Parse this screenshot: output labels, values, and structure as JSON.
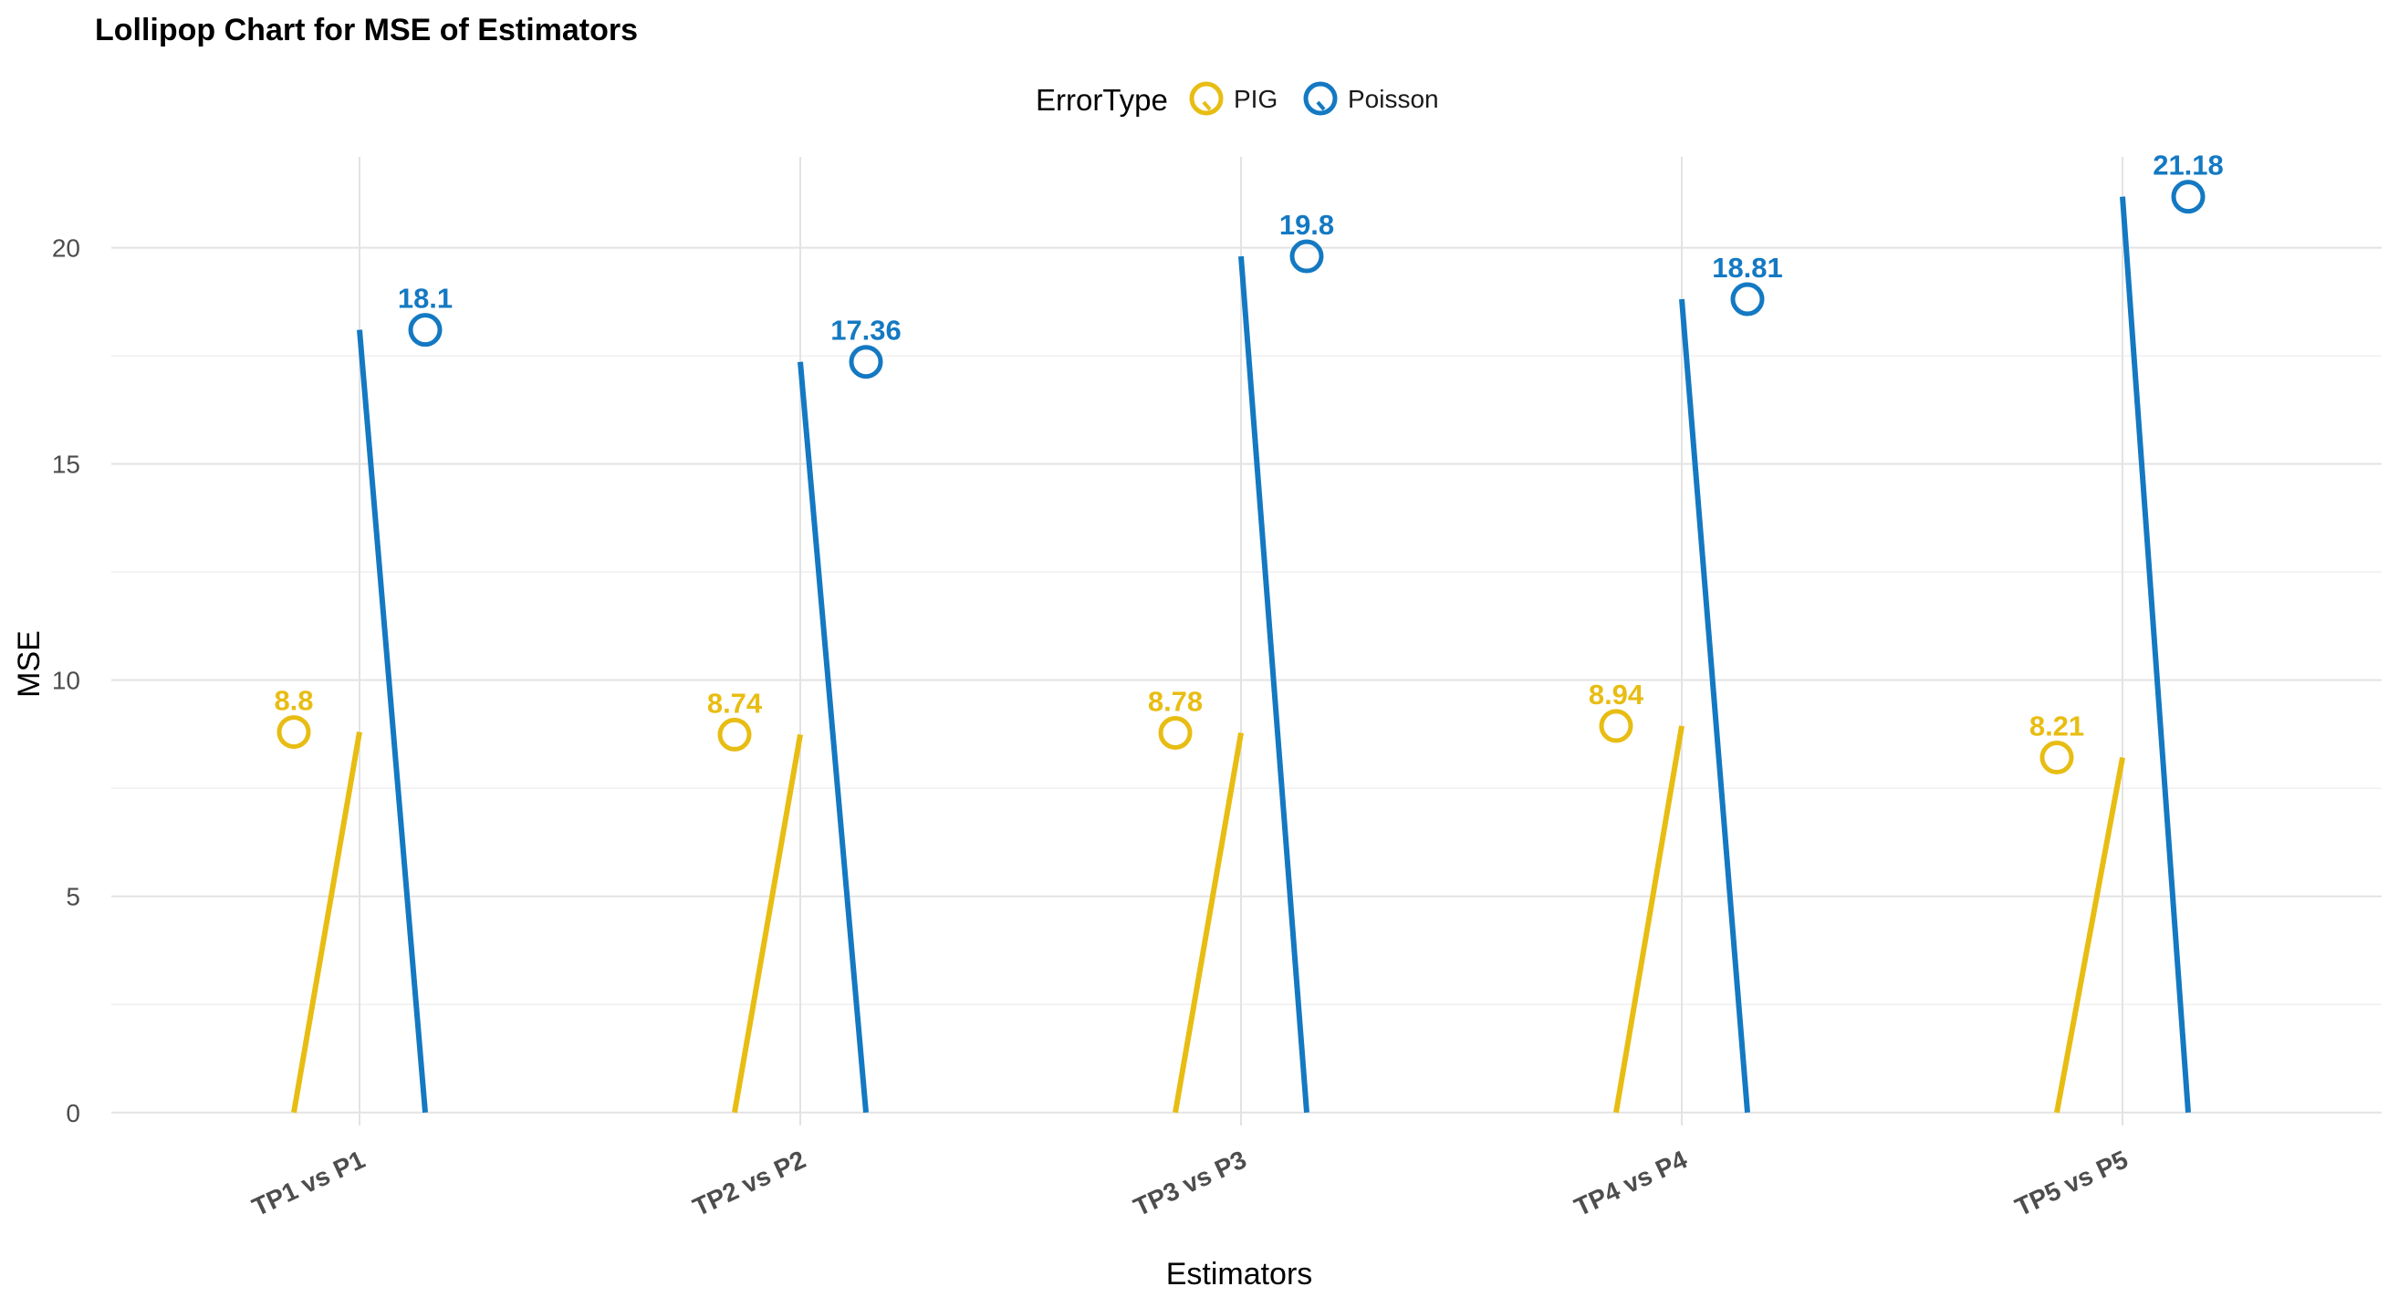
{
  "chart_data": {
    "type": "lollipop",
    "title": "Lollipop Chart for MSE of Estimators",
    "xlabel": "Estimators",
    "ylabel": "MSE",
    "categories": [
      "TP1 vs P1",
      "TP2 vs P2",
      "TP3 vs P3",
      "TP4 vs P4",
      "TP5 vs P5"
    ],
    "ylim": [
      -0.3,
      22.1
    ],
    "yticks": [
      0,
      5,
      10,
      15,
      20
    ],
    "grid": true,
    "legend": {
      "title": "ErrorType",
      "position": "top"
    },
    "series": [
      {
        "name": "PIG",
        "color": "#E8BD13",
        "values": [
          8.8,
          8.74,
          8.78,
          8.94,
          8.21
        ],
        "labels": [
          "8.8",
          "8.74",
          "8.78",
          "8.94",
          "8.21"
        ]
      },
      {
        "name": "Poisson",
        "color": "#1479C2",
        "values": [
          18.1,
          17.36,
          19.8,
          18.81,
          21.18
        ],
        "labels": [
          "18.1",
          "17.36",
          "19.8",
          "18.81",
          "21.18"
        ]
      }
    ]
  }
}
